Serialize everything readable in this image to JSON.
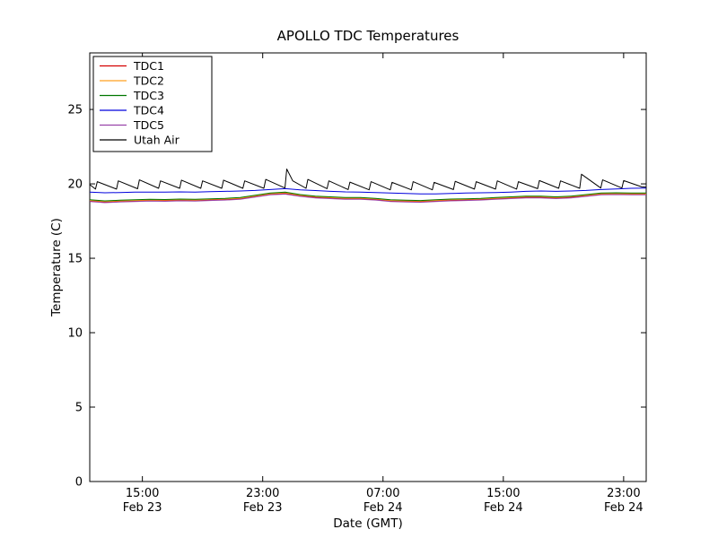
{
  "page": {
    "background": "#ffffff"
  },
  "chart_data": {
    "type": "line",
    "title": "APOLLO TDC Temperatures",
    "xlabel": "Date (GMT)",
    "ylabel": "Temperature (C)",
    "x_unit": "hours since Feb 23 00:00 GMT",
    "xlim": [
      11.5,
      48.5
    ],
    "ylim": [
      0,
      28.8
    ],
    "grid": false,
    "legend_position": "upper left",
    "yticks": [
      0,
      5,
      10,
      15,
      20,
      25
    ],
    "xticks": [
      {
        "pos": 15,
        "time": "15:00",
        "date": "Feb 23"
      },
      {
        "pos": 23,
        "time": "23:00",
        "date": "Feb 23"
      },
      {
        "pos": 31,
        "time": "07:00",
        "date": "Feb 24"
      },
      {
        "pos": 39,
        "time": "15:00",
        "date": "Feb 24"
      },
      {
        "pos": 47,
        "time": "23:00",
        "date": "Feb 24"
      }
    ],
    "tdc_x": [
      11.5,
      12.5,
      13.5,
      14.5,
      15.5,
      16.5,
      17.5,
      18.5,
      19.5,
      20.5,
      21.5,
      22.5,
      23.5,
      24.5,
      25.5,
      26.5,
      27.5,
      28.5,
      29.5,
      30.5,
      31.5,
      32.5,
      33.5,
      34.5,
      35.5,
      36.5,
      37.5,
      38.5,
      39.5,
      40.5,
      41.5,
      42.5,
      43.5,
      44.5,
      45.5,
      46.5,
      47.5,
      48.5
    ],
    "series": [
      {
        "name": "TDC1",
        "color": "#d40000",
        "values": [
          18.85,
          18.78,
          18.82,
          18.85,
          18.88,
          18.87,
          18.9,
          18.88,
          18.92,
          18.95,
          19.0,
          19.15,
          19.3,
          19.35,
          19.2,
          19.1,
          19.05,
          19.0,
          19.0,
          18.95,
          18.85,
          18.82,
          18.8,
          18.85,
          18.9,
          18.92,
          18.95,
          19.0,
          19.05,
          19.1,
          19.1,
          19.05,
          19.1,
          19.2,
          19.3,
          19.32,
          19.3,
          19.3
        ]
      },
      {
        "name": "TDC2",
        "color": "#ffa020",
        "values": [
          18.89,
          18.82,
          18.86,
          18.89,
          18.92,
          18.91,
          18.94,
          18.92,
          18.96,
          18.99,
          19.04,
          19.19,
          19.34,
          19.4,
          19.24,
          19.14,
          19.09,
          19.04,
          19.04,
          18.99,
          18.89,
          18.86,
          18.84,
          18.89,
          18.94,
          18.96,
          18.99,
          19.04,
          19.09,
          19.14,
          19.14,
          19.09,
          19.14,
          19.24,
          19.34,
          19.36,
          19.34,
          19.34
        ]
      },
      {
        "name": "TDC3",
        "color": "#007700",
        "values": [
          18.93,
          18.86,
          18.9,
          18.93,
          18.96,
          18.95,
          18.98,
          18.96,
          19.0,
          19.03,
          19.08,
          19.23,
          19.38,
          19.44,
          19.28,
          19.18,
          19.13,
          19.08,
          19.08,
          19.03,
          18.93,
          18.9,
          18.88,
          18.93,
          18.98,
          19.0,
          19.03,
          19.08,
          19.13,
          19.18,
          19.18,
          19.13,
          19.18,
          19.28,
          19.38,
          19.4,
          19.38,
          19.38
        ]
      },
      {
        "name": "TDC4",
        "color": "#0000dd",
        "values": [
          19.45,
          19.4,
          19.42,
          19.44,
          19.45,
          19.45,
          19.46,
          19.45,
          19.48,
          19.5,
          19.52,
          19.56,
          19.62,
          19.68,
          19.6,
          19.55,
          19.5,
          19.46,
          19.45,
          19.42,
          19.38,
          19.35,
          19.33,
          19.32,
          19.35,
          19.38,
          19.4,
          19.42,
          19.45,
          19.5,
          19.52,
          19.5,
          19.52,
          19.56,
          19.62,
          19.66,
          19.7,
          19.72
        ]
      },
      {
        "name": "TDC5",
        "color": "#9944aa",
        "values": [
          18.81,
          18.74,
          18.78,
          18.81,
          18.84,
          18.83,
          18.86,
          18.84,
          18.88,
          18.91,
          18.96,
          19.11,
          19.26,
          19.31,
          19.16,
          19.06,
          19.01,
          18.96,
          18.96,
          18.91,
          18.81,
          18.78,
          18.76,
          18.81,
          18.86,
          18.88,
          18.91,
          18.96,
          19.01,
          19.06,
          19.06,
          19.01,
          19.06,
          19.16,
          19.26,
          19.28,
          19.26,
          19.26
        ]
      },
      {
        "name": "Utah Air",
        "color": "#000000",
        "points": [
          [
            11.5,
            19.95
          ],
          [
            11.88,
            19.65
          ],
          [
            12.0,
            20.15
          ],
          [
            13.28,
            19.65
          ],
          [
            13.4,
            20.2
          ],
          [
            14.68,
            19.67
          ],
          [
            14.8,
            20.27
          ],
          [
            16.08,
            19.7
          ],
          [
            16.2,
            20.2
          ],
          [
            17.48,
            19.7
          ],
          [
            17.6,
            20.25
          ],
          [
            18.88,
            19.7
          ],
          [
            19.0,
            20.2
          ],
          [
            20.28,
            19.7
          ],
          [
            20.4,
            20.25
          ],
          [
            21.68,
            19.7
          ],
          [
            21.8,
            20.2
          ],
          [
            23.08,
            19.7
          ],
          [
            23.2,
            20.3
          ],
          [
            24.48,
            19.72
          ],
          [
            24.6,
            21.0
          ],
          [
            25.0,
            20.2
          ],
          [
            25.88,
            19.7
          ],
          [
            26.0,
            20.3
          ],
          [
            27.28,
            19.68
          ],
          [
            27.4,
            20.2
          ],
          [
            28.68,
            19.62
          ],
          [
            28.8,
            20.12
          ],
          [
            30.08,
            19.6
          ],
          [
            30.2,
            20.15
          ],
          [
            31.48,
            19.6
          ],
          [
            31.6,
            20.1
          ],
          [
            32.88,
            19.6
          ],
          [
            33.0,
            20.15
          ],
          [
            34.28,
            19.6
          ],
          [
            34.4,
            20.1
          ],
          [
            35.68,
            19.62
          ],
          [
            35.8,
            20.17
          ],
          [
            37.08,
            19.65
          ],
          [
            37.2,
            20.15
          ],
          [
            38.48,
            19.65
          ],
          [
            38.6,
            20.2
          ],
          [
            39.88,
            19.65
          ],
          [
            40.0,
            20.15
          ],
          [
            41.28,
            19.68
          ],
          [
            41.4,
            20.22
          ],
          [
            42.68,
            19.7
          ],
          [
            42.8,
            20.2
          ],
          [
            44.08,
            19.7
          ],
          [
            44.2,
            20.65
          ],
          [
            45.48,
            19.72
          ],
          [
            45.6,
            20.27
          ],
          [
            46.88,
            19.72
          ],
          [
            47.0,
            20.22
          ],
          [
            48.2,
            19.8
          ],
          [
            48.5,
            19.78
          ]
        ]
      }
    ]
  }
}
